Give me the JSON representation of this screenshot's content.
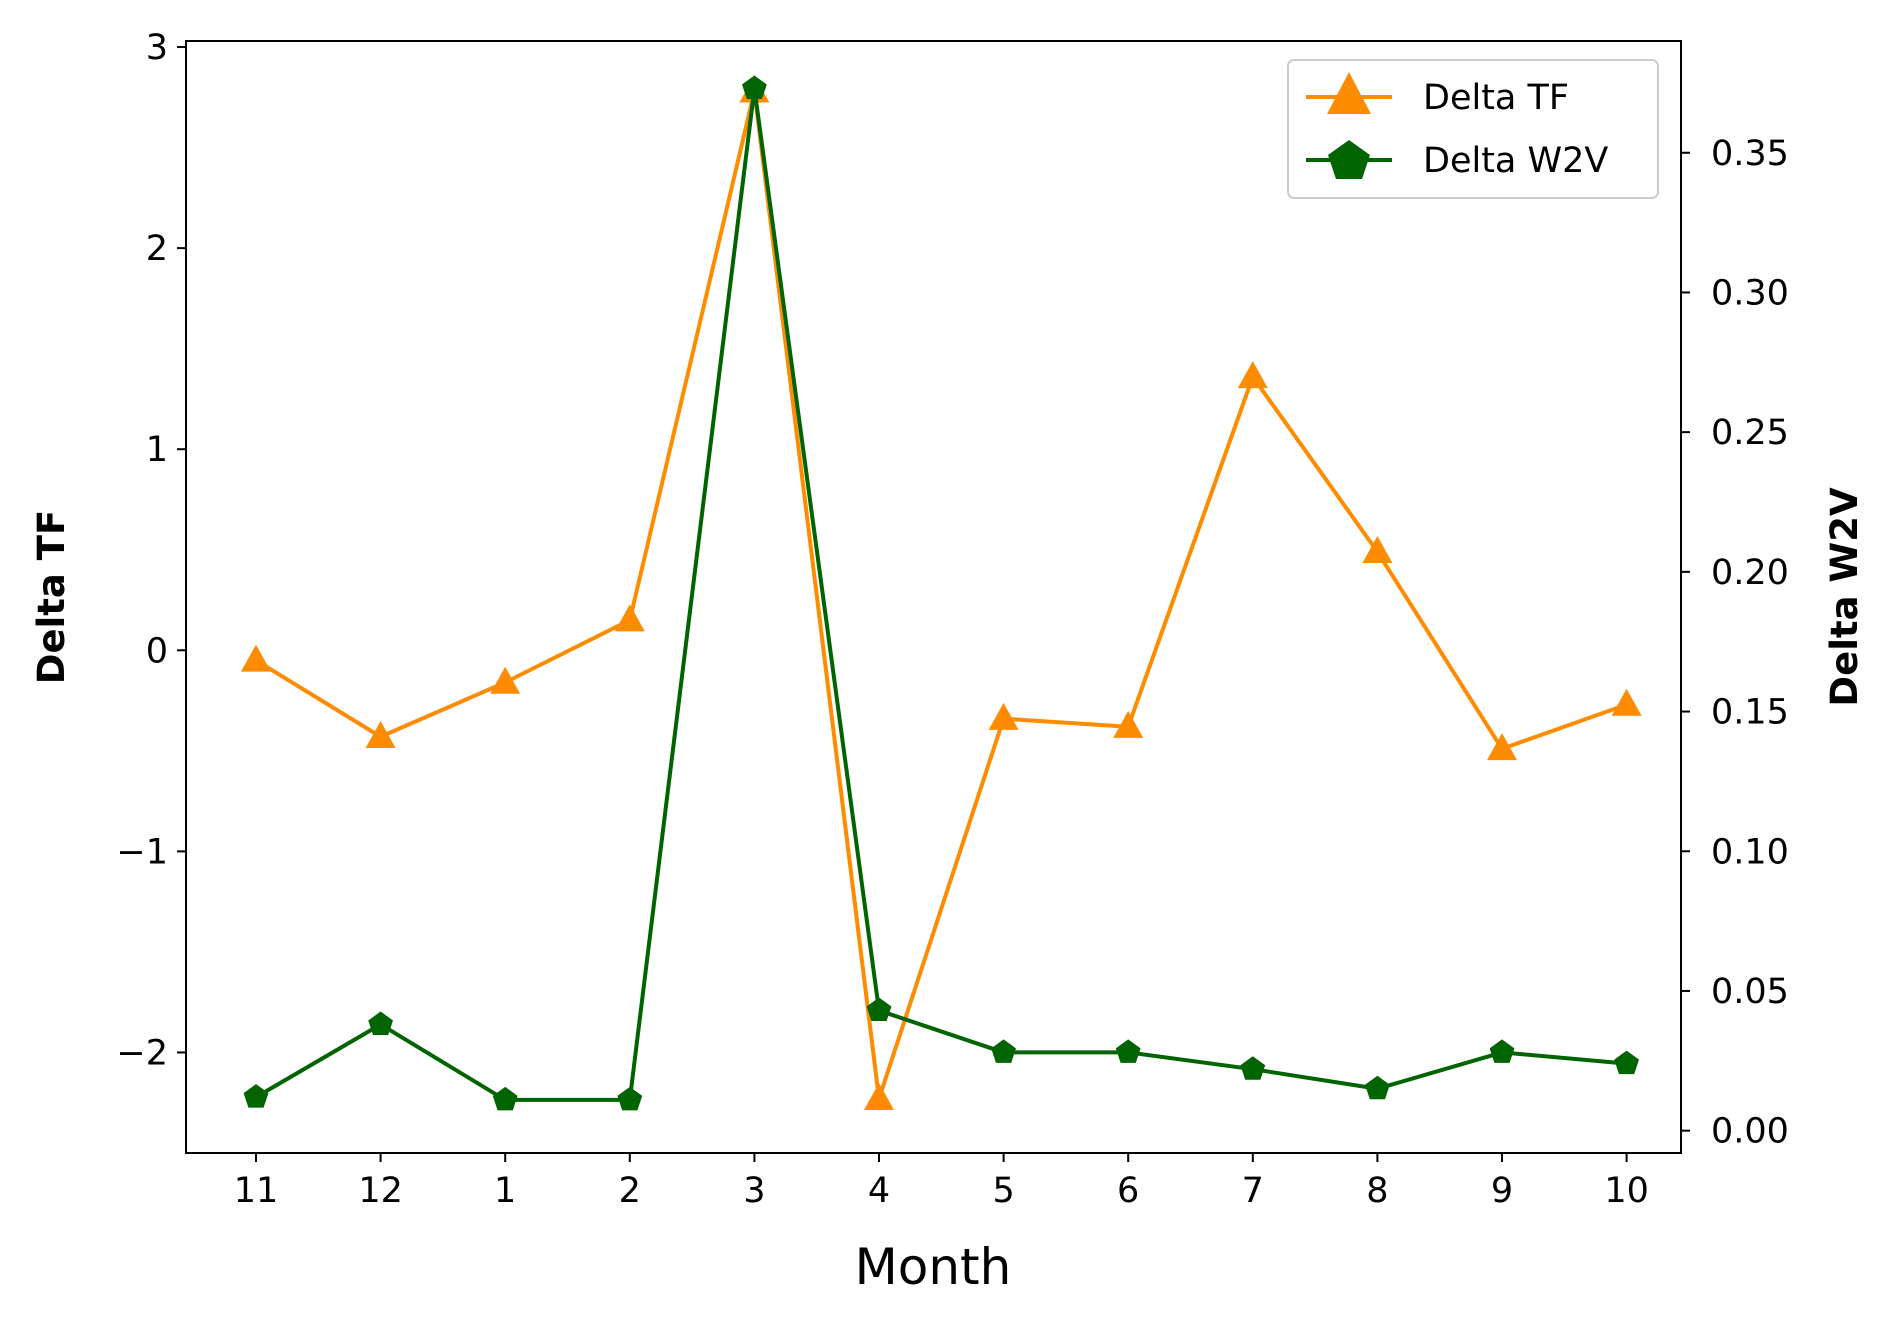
{
  "chart_data": {
    "type": "line",
    "xlabel": "Month",
    "ylabel_left": "Delta TF",
    "ylabel_right": "Delta W2V",
    "categories": [
      "11",
      "12",
      "1",
      "2",
      "3",
      "4",
      "5",
      "6",
      "7",
      "8",
      "9",
      "10"
    ],
    "ylim_left": [
      -2.5,
      3.03
    ],
    "ylim_right": [
      -0.008,
      0.39
    ],
    "yticks_left": [
      3,
      2,
      1,
      0,
      -1,
      -2
    ],
    "yticks_left_labels": [
      "3",
      "2",
      "1",
      "0",
      "−1",
      "−2"
    ],
    "yticks_right": [
      0.35,
      0.3,
      0.25,
      0.2,
      0.15,
      0.1,
      0.05,
      0.0
    ],
    "yticks_right_labels": [
      "0.35",
      "0.30",
      "0.25",
      "0.20",
      "0.15",
      "0.10",
      "0.05",
      "0.00"
    ],
    "grid": false,
    "legend_position": "top-right",
    "series": [
      {
        "name": "Delta TF",
        "axis": "left",
        "color": "#ff8c00",
        "marker": "triangle",
        "values": [
          -0.05,
          -0.43,
          -0.16,
          0.15,
          2.78,
          -2.23,
          -0.34,
          -0.38,
          1.36,
          0.49,
          -0.49,
          -0.27
        ]
      },
      {
        "name": "Delta W2V",
        "axis": "right",
        "color": "#006400",
        "marker": "pentagon",
        "values": [
          0.012,
          0.038,
          0.011,
          0.011,
          0.373,
          0.043,
          0.028,
          0.028,
          0.022,
          0.015,
          0.028,
          0.024
        ]
      }
    ]
  }
}
